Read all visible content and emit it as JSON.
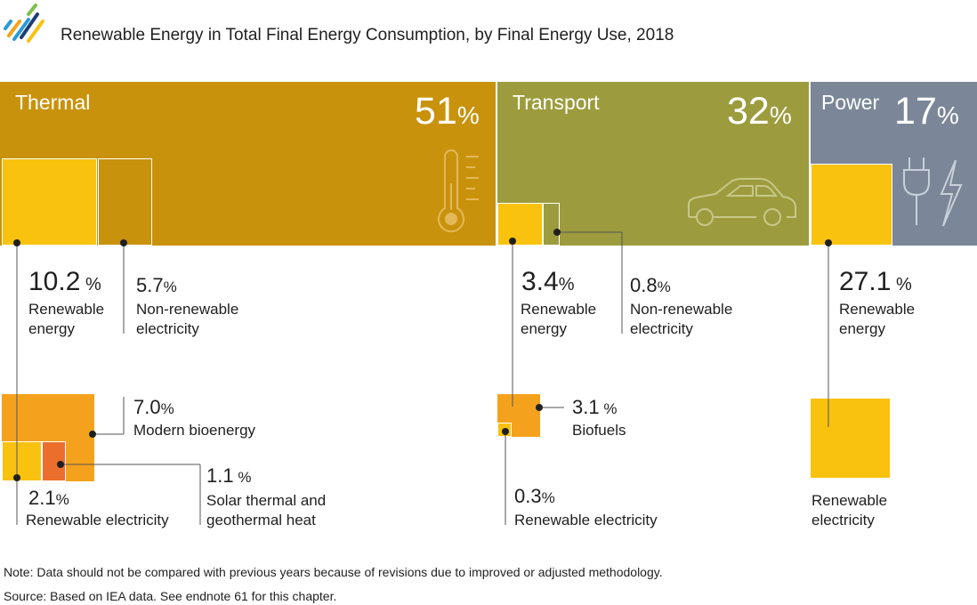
{
  "title": "Renewable Energy in Total Final Energy Consumption, by Final Energy Use, 2018",
  "note": "Note: Data should not be compared with previous years because of revisions due to improved or adjusted methodology.",
  "source": "Source: Based on IEA data. See endnote 61 for this chapter.",
  "colors": {
    "thermal": "#C9920C",
    "transport": "#9C9C3E",
    "power": "#7B8798",
    "renewable": "#F9C20F",
    "bioenergy": "#F4A21D",
    "solar_thermal": "#EB6E2C",
    "text": "#1f1f1f"
  },
  "icons": [
    "logo-icon",
    "thermometer-icon",
    "car-icon",
    "plug-icon",
    "lightning-icon"
  ],
  "chart_data": {
    "type": "treemap",
    "title": "Renewable Energy in Total Final Energy Consumption, by Final Energy Use, 2018",
    "units": "%",
    "sectors": [
      {
        "name": "Thermal",
        "share_value": "51",
        "share_unit": "%",
        "shares": [
          {
            "value": "10.2",
            "unit": "%",
            "label_lines": [
              "Renewable",
              "energy"
            ]
          },
          {
            "value": "5.7",
            "unit": "%",
            "label_lines": [
              "Non-renewable",
              "electricity"
            ]
          }
        ],
        "breakdown": [
          {
            "value": "7.0",
            "unit": "%",
            "label_lines": [
              "Modern bioenergy"
            ]
          },
          {
            "value": "1.1",
            "unit": "%",
            "label_lines": [
              "Solar thermal and",
              "geothermal heat"
            ]
          },
          {
            "value": "2.1",
            "unit": "%",
            "label_lines": [
              "Renewable electricity"
            ]
          }
        ]
      },
      {
        "name": "Transport",
        "share_value": "32",
        "share_unit": "%",
        "shares": [
          {
            "value": "3.4",
            "unit": "%",
            "label_lines": [
              "Renewable",
              "energy"
            ]
          },
          {
            "value": "0.8",
            "unit": "%",
            "label_lines": [
              "Non-renewable",
              "electricity"
            ]
          }
        ],
        "breakdown": [
          {
            "value": "3.1",
            "unit": "%",
            "label_lines": [
              "Biofuels"
            ]
          },
          {
            "value": "0.3",
            "unit": "%",
            "label_lines": [
              "Renewable electricity"
            ]
          }
        ]
      },
      {
        "name": "Power",
        "share_value": "17",
        "share_unit": "%",
        "shares": [
          {
            "value": "27.1",
            "unit": "%",
            "label_lines": [
              "Renewable",
              "energy"
            ]
          }
        ],
        "breakdown": [
          {
            "value": "",
            "unit": "",
            "label_lines": [
              "Renewable",
              "electricity"
            ]
          }
        ]
      }
    ]
  }
}
